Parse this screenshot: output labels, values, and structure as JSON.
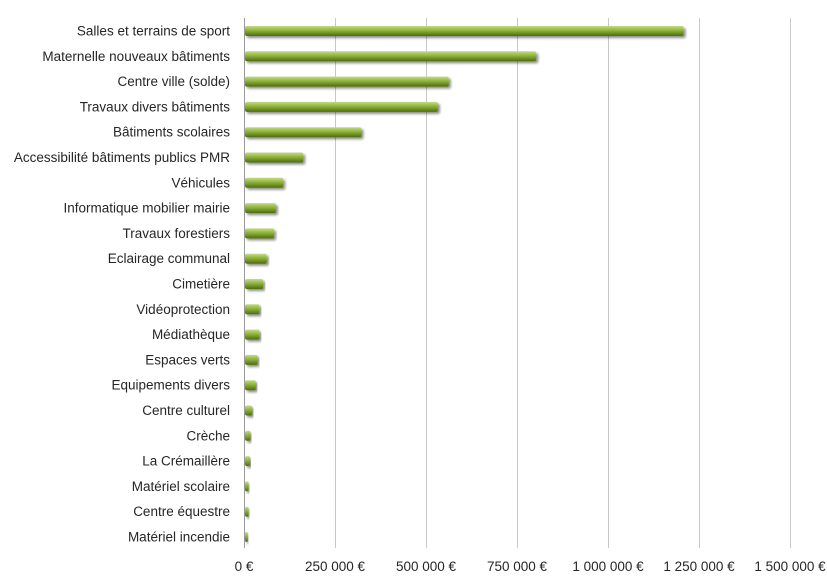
{
  "chart_data": {
    "type": "bar",
    "orientation": "horizontal",
    "categories": [
      "Salles et terrains de sport",
      "Maternelle nouveaux bâtiments",
      "Centre ville (solde)",
      "Travaux divers bâtiments",
      "Bâtiments scolaires",
      "Accessibilité bâtiments publics PMR",
      "Véhicules",
      "Informatique mobilier mairie",
      "Travaux forestiers",
      "Eclairage communal",
      "Cimetière",
      "Vidéoprotection",
      "Médiathèque",
      "Espaces verts",
      "Equipements divers",
      "Centre culturel",
      "Crèche",
      "La Crémaillère",
      "Matériel scolaire",
      "Centre équestre",
      "Matériel incendie"
    ],
    "values": [
      1205000,
      800000,
      560000,
      530000,
      320000,
      160000,
      105000,
      85000,
      80000,
      60000,
      50000,
      40000,
      40000,
      35000,
      30000,
      20000,
      15000,
      14000,
      10000,
      10000,
      8000
    ],
    "xlim": [
      0,
      1500000
    ],
    "x_ticks": [
      0,
      250000,
      500000,
      750000,
      1000000,
      1250000,
      1500000
    ],
    "x_tick_labels": [
      "0 €",
      "250 000 €",
      "500 000 €",
      "750 000 €",
      "1 000 000 €",
      "1 250 000 €",
      "1 500 000 €"
    ],
    "grid": true,
    "bar_color": "#8db33a",
    "bar_highlight_color": "#c4dc7e",
    "bar_shadow_color": "#4e6a14"
  }
}
